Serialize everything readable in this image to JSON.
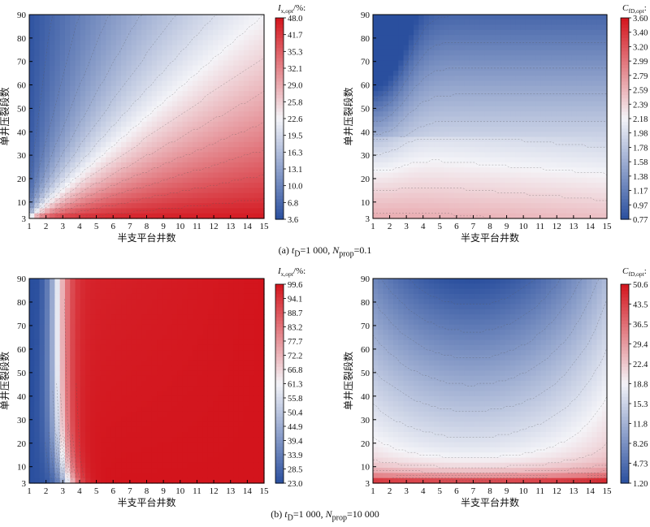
{
  "captions": {
    "a": {
      "prefix": "(a) ",
      "t": "t",
      "tsub": "D",
      "teq": "=1 000, ",
      "n": "N",
      "nsub": "prop",
      "neq": "=0.1"
    },
    "b": {
      "prefix": "(b) ",
      "t": "t",
      "tsub": "D",
      "teq": "=1 000, ",
      "n": "N",
      "nsub": "prop",
      "neq": "=10 000"
    }
  },
  "colors": {
    "low": "#2a4f9e",
    "mid": "#f4f4f8",
    "high": "#d3141c",
    "contour": "#555555",
    "frame": "#000000"
  },
  "chart_data": [
    {
      "id": "a-left",
      "type": "heatmap",
      "xlabel": "半支平台井数",
      "ylabel": "单井压裂段数",
      "x_ticks": [
        "1",
        "2",
        "3",
        "4",
        "5",
        "6",
        "7",
        "8",
        "9",
        "10",
        "11",
        "12",
        "13",
        "14",
        "15"
      ],
      "y_ticks": [
        "3",
        "10",
        "20",
        "30",
        "40",
        "50",
        "60",
        "70",
        "80",
        "90"
      ],
      "xlim": [
        1,
        15
      ],
      "ylim": [
        3,
        90
      ],
      "colorbar": {
        "label_main": "I",
        "label_sub": "x,opt",
        "label_tail": "/%:",
        "scale": "nonlinear",
        "ticks": [
          "48.0",
          "41.7",
          "35.3",
          "32.1",
          "29.0",
          "25.8",
          "22.6",
          "19.5",
          "16.3",
          "13.1",
          "10.0",
          "6.8",
          "3.6"
        ]
      },
      "pattern": "low (blue) toward few wells / many stages; high (red) toward many wells / few stages; contours fan out from (1,3)"
    },
    {
      "id": "a-right",
      "type": "heatmap",
      "xlabel": "半支平台井数",
      "ylabel": "单井压裂段数",
      "x_ticks": [
        "1",
        "2",
        "3",
        "4",
        "5",
        "6",
        "7",
        "8",
        "9",
        "10",
        "11",
        "12",
        "13",
        "14",
        "15"
      ],
      "y_ticks": [
        "3",
        "10",
        "20",
        "30",
        "40",
        "50",
        "60",
        "70",
        "80",
        "90"
      ],
      "xlim": [
        1,
        15
      ],
      "ylim": [
        3,
        90
      ],
      "colorbar": {
        "label_main": "C",
        "label_sub": "fD,opt",
        "label_tail": ":",
        "scale": "nonlinear",
        "ticks": [
          "3.60",
          "3.40",
          "3.20",
          "2.99",
          "2.79",
          "2.59",
          "2.39",
          "2.18",
          "1.98",
          "1.78",
          "1.58",
          "1.38",
          "1.17",
          "0.97",
          "0.77"
        ]
      },
      "pattern": "low (blue) at few wells / many stages; high (red) at few stages; near-horizontal contours around 40 stages"
    },
    {
      "id": "b-left",
      "type": "heatmap",
      "xlabel": "半支平台井数",
      "ylabel": "单井压裂段数",
      "x_ticks": [
        "1",
        "2",
        "3",
        "4",
        "5",
        "6",
        "7",
        "8",
        "9",
        "10",
        "11",
        "12",
        "13",
        "14",
        "15"
      ],
      "y_ticks": [
        "3",
        "10",
        "20",
        "30",
        "40",
        "50",
        "60",
        "70",
        "80",
        "90"
      ],
      "xlim": [
        1,
        15
      ],
      "ylim": [
        3,
        90
      ],
      "colorbar": {
        "label_main": "I",
        "label_sub": "x,opt",
        "label_tail": "/%:",
        "scale": "nonlinear",
        "ticks": [
          "99.6",
          "94.1",
          "88.7",
          "83.2",
          "77.7",
          "72.2",
          "66.8",
          "61.3",
          "55.8",
          "50.4",
          "44.9",
          "39.4",
          "33.9",
          "28.5",
          "23.0"
        ]
      },
      "pattern": "blue band at 1–2 wells, transition near 2.5 wells, saturated red beyond"
    },
    {
      "id": "b-right",
      "type": "heatmap",
      "xlabel": "半支平台井数",
      "ylabel": "单井压裂段数",
      "x_ticks": [
        "1",
        "2",
        "3",
        "4",
        "5",
        "6",
        "7",
        "8",
        "9",
        "10",
        "11",
        "12",
        "13",
        "14",
        "15"
      ],
      "y_ticks": [
        "3",
        "10",
        "20",
        "30",
        "40",
        "50",
        "60",
        "70",
        "80",
        "90"
      ],
      "xlim": [
        1,
        15
      ],
      "ylim": [
        3,
        90
      ],
      "colorbar": {
        "label_main": "C",
        "label_sub": "fD,opt",
        "label_tail": ":",
        "scale": "nonlinear",
        "ticks": [
          "50.6",
          "43.5",
          "36.5",
          "29.4",
          "22.4",
          "18.8",
          "15.3",
          "11.8",
          "8.26",
          "4.73",
          "1.20"
        ]
      },
      "pattern": "U-shaped contours; lowest (deep blue) at many stages around 6–7 wells; red band along few stages"
    }
  ]
}
